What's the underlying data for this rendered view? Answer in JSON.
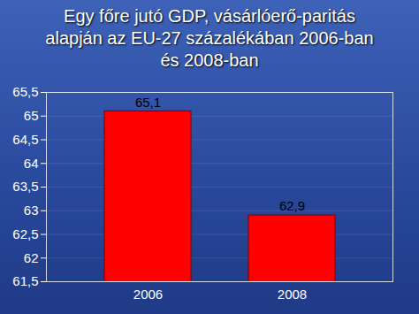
{
  "chart_data": {
    "type": "bar",
    "title": "Egy főre jutó GDP, vásárlóerő-paritás alapján az EU-27 százalékában 2006-ban és 2008-ban",
    "categories": [
      "2006",
      "2008"
    ],
    "values": [
      65.1,
      62.9
    ],
    "value_labels": [
      "65,1",
      "62,9"
    ],
    "color": "#ff0000",
    "ylim": [
      61.5,
      65.5
    ],
    "yticks": [
      {
        "value": 61.5,
        "label": "61,5"
      },
      62,
      {
        "value": 62.5,
        "label": "62,5"
      },
      63,
      {
        "value": 63.5,
        "label": "63,5"
      },
      64,
      {
        "value": 64.5,
        "label": "64,5"
      },
      65,
      {
        "value": 65.5,
        "label": "65,5"
      }
    ],
    "grid": true,
    "data_labels": true
  }
}
